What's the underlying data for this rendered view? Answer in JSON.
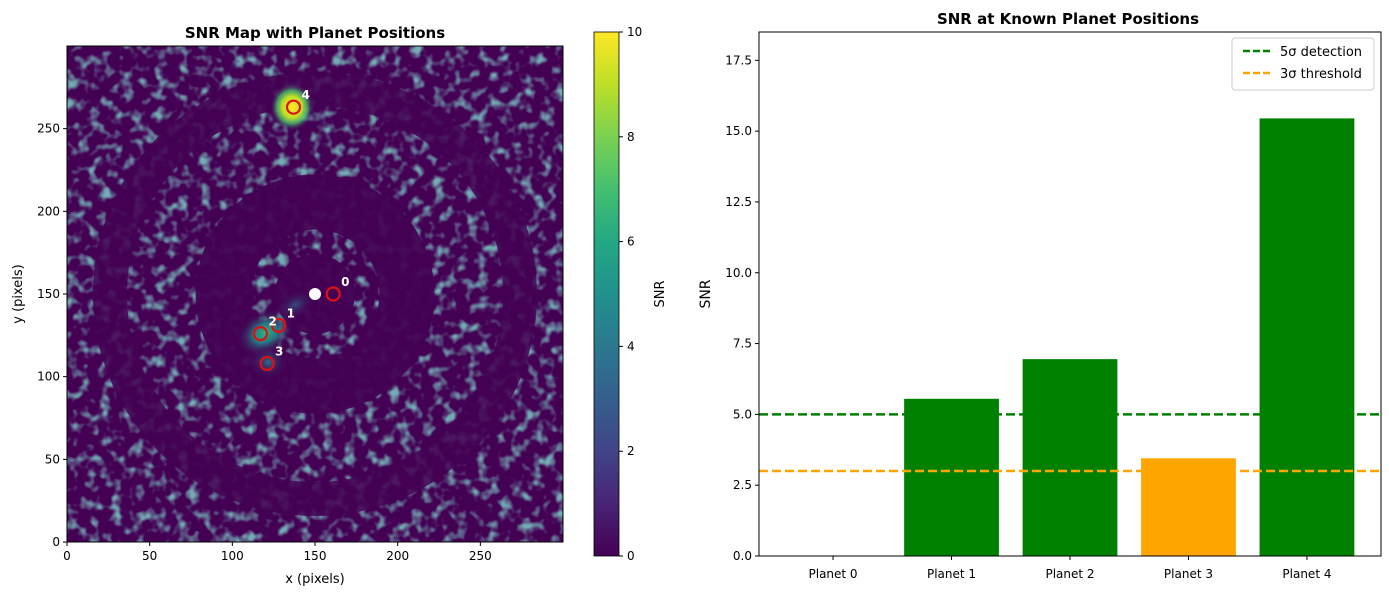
{
  "chart_data": [
    {
      "type": "heatmap",
      "title": "SNR Map with Planet Positions",
      "xlabel": "x (pixels)",
      "ylabel": "y (pixels)",
      "xlim": [
        0,
        300
      ],
      "ylim": [
        0,
        300
      ],
      "xticks": [
        0,
        50,
        100,
        150,
        200,
        250
      ],
      "yticks": [
        0,
        50,
        100,
        150,
        200,
        250
      ],
      "colorbar": {
        "label": "SNR",
        "range": [
          0,
          10
        ],
        "ticks": [
          0,
          2,
          4,
          6,
          8,
          10
        ],
        "colormap": "viridis"
      },
      "star": {
        "x": 150,
        "y": 150,
        "color": "#ffffff"
      },
      "planets": [
        {
          "label": "0",
          "x": 161,
          "y": 150
        },
        {
          "label": "1",
          "x": 128,
          "y": 131
        },
        {
          "label": "2",
          "x": 117,
          "y": 126
        },
        {
          "label": "3",
          "x": 121,
          "y": 108
        },
        {
          "label": "4",
          "x": 137,
          "y": 263
        }
      ],
      "marker_color": "#e01010",
      "planet_label_color": "#ffffff"
    },
    {
      "type": "bar",
      "title": "SNR at Known Planet Positions",
      "xlabel": "",
      "ylabel": "SNR",
      "ylim": [
        0,
        18.5
      ],
      "yticks": [
        0.0,
        2.5,
        5.0,
        7.5,
        10.0,
        12.5,
        15.0,
        17.5
      ],
      "ytick_labels": [
        "0.0",
        "2.5",
        "5.0",
        "7.5",
        "10.0",
        "12.5",
        "15.0",
        "17.5"
      ],
      "categories": [
        "Planet 0",
        "Planet 1",
        "Planet 2",
        "Planet 3",
        "Planet 4"
      ],
      "values": [
        0,
        5.55,
        6.95,
        3.45,
        15.45
      ],
      "bar_colors": [
        "#008000",
        "#008000",
        "#008000",
        "#ffa500",
        "#008000"
      ],
      "hlines": [
        {
          "name": "5σ detection",
          "y": 5.0,
          "color": "#008000"
        },
        {
          "name": "3σ threshold",
          "y": 3.0,
          "color": "#ffa500"
        }
      ],
      "legend": "top-right"
    }
  ]
}
